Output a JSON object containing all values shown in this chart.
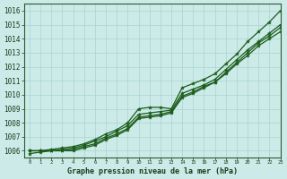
{
  "title": "Graphe pression niveau de la mer (hPa)",
  "background_color": "#cceae8",
  "plot_background": "#cceae8",
  "grid_color": "#a8d5d0",
  "line_color": "#1a5c1a",
  "xlim": [
    -0.5,
    23
  ],
  "ylim": [
    1005.5,
    1016.5
  ],
  "yticks": [
    1006,
    1007,
    1008,
    1009,
    1010,
    1011,
    1012,
    1013,
    1014,
    1015,
    1016
  ],
  "xticks": [
    0,
    1,
    2,
    3,
    4,
    5,
    6,
    7,
    8,
    9,
    10,
    11,
    12,
    13,
    14,
    15,
    16,
    17,
    18,
    19,
    20,
    21,
    22,
    23
  ],
  "series": [
    [
      1006.0,
      1006.0,
      1006.1,
      1006.2,
      1006.3,
      1006.5,
      1006.8,
      1007.2,
      1007.5,
      1008.0,
      1009.0,
      1009.1,
      1009.1,
      1009.0,
      1010.5,
      1010.8,
      1011.1,
      1011.5,
      1012.2,
      1012.9,
      1013.8,
      1014.5,
      1015.2,
      1016.0
    ],
    [
      1006.0,
      1006.0,
      1006.0,
      1006.1,
      1006.2,
      1006.4,
      1006.7,
      1007.0,
      1007.4,
      1007.8,
      1008.6,
      1008.7,
      1008.8,
      1008.9,
      1010.1,
      1010.4,
      1010.7,
      1011.1,
      1011.8,
      1012.5,
      1013.2,
      1013.8,
      1014.4,
      1015.0
    ],
    [
      1006.0,
      1006.0,
      1006.0,
      1006.0,
      1006.1,
      1006.3,
      1006.5,
      1006.9,
      1007.2,
      1007.6,
      1008.4,
      1008.5,
      1008.6,
      1008.8,
      1009.9,
      1010.2,
      1010.6,
      1010.9,
      1011.6,
      1012.3,
      1013.0,
      1013.7,
      1014.2,
      1014.8
    ],
    [
      1005.8,
      1005.9,
      1006.0,
      1006.0,
      1006.0,
      1006.2,
      1006.4,
      1006.8,
      1007.1,
      1007.5,
      1008.3,
      1008.4,
      1008.5,
      1008.7,
      1009.8,
      1010.1,
      1010.5,
      1010.9,
      1011.5,
      1012.2,
      1012.8,
      1013.5,
      1014.0,
      1014.5
    ]
  ]
}
